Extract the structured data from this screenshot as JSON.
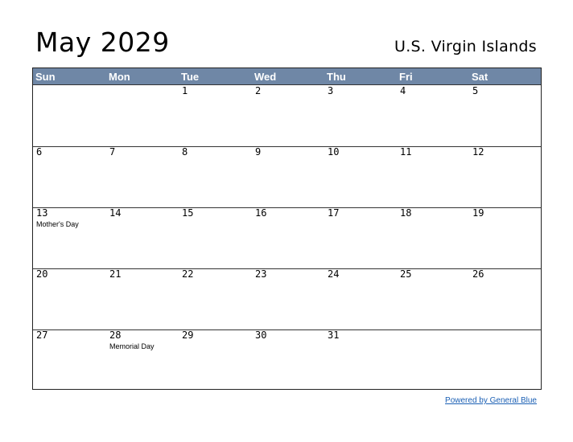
{
  "header": {
    "title": "May 2029",
    "region": "U.S. Virgin Islands"
  },
  "weekdays": [
    "Sun",
    "Mon",
    "Tue",
    "Wed",
    "Thu",
    "Fri",
    "Sat"
  ],
  "weeks": [
    [
      {
        "day": ""
      },
      {
        "day": ""
      },
      {
        "day": "1"
      },
      {
        "day": "2"
      },
      {
        "day": "3"
      },
      {
        "day": "4"
      },
      {
        "day": "5"
      }
    ],
    [
      {
        "day": "6"
      },
      {
        "day": "7"
      },
      {
        "day": "8"
      },
      {
        "day": "9"
      },
      {
        "day": "10"
      },
      {
        "day": "11"
      },
      {
        "day": "12"
      }
    ],
    [
      {
        "day": "13",
        "holiday": "Mother's Day"
      },
      {
        "day": "14"
      },
      {
        "day": "15"
      },
      {
        "day": "16"
      },
      {
        "day": "17"
      },
      {
        "day": "18"
      },
      {
        "day": "19"
      }
    ],
    [
      {
        "day": "20"
      },
      {
        "day": "21"
      },
      {
        "day": "22"
      },
      {
        "day": "23"
      },
      {
        "day": "24"
      },
      {
        "day": "25"
      },
      {
        "day": "26"
      }
    ],
    [
      {
        "day": "27"
      },
      {
        "day": "28",
        "holiday": "Memorial Day"
      },
      {
        "day": "29"
      },
      {
        "day": "30"
      },
      {
        "day": "31"
      },
      {
        "day": ""
      },
      {
        "day": ""
      }
    ]
  ],
  "footer": {
    "link_text": "Powered by General Blue"
  },
  "colors": {
    "header_bg": "#6f87a6",
    "link": "#1a5fb4"
  }
}
